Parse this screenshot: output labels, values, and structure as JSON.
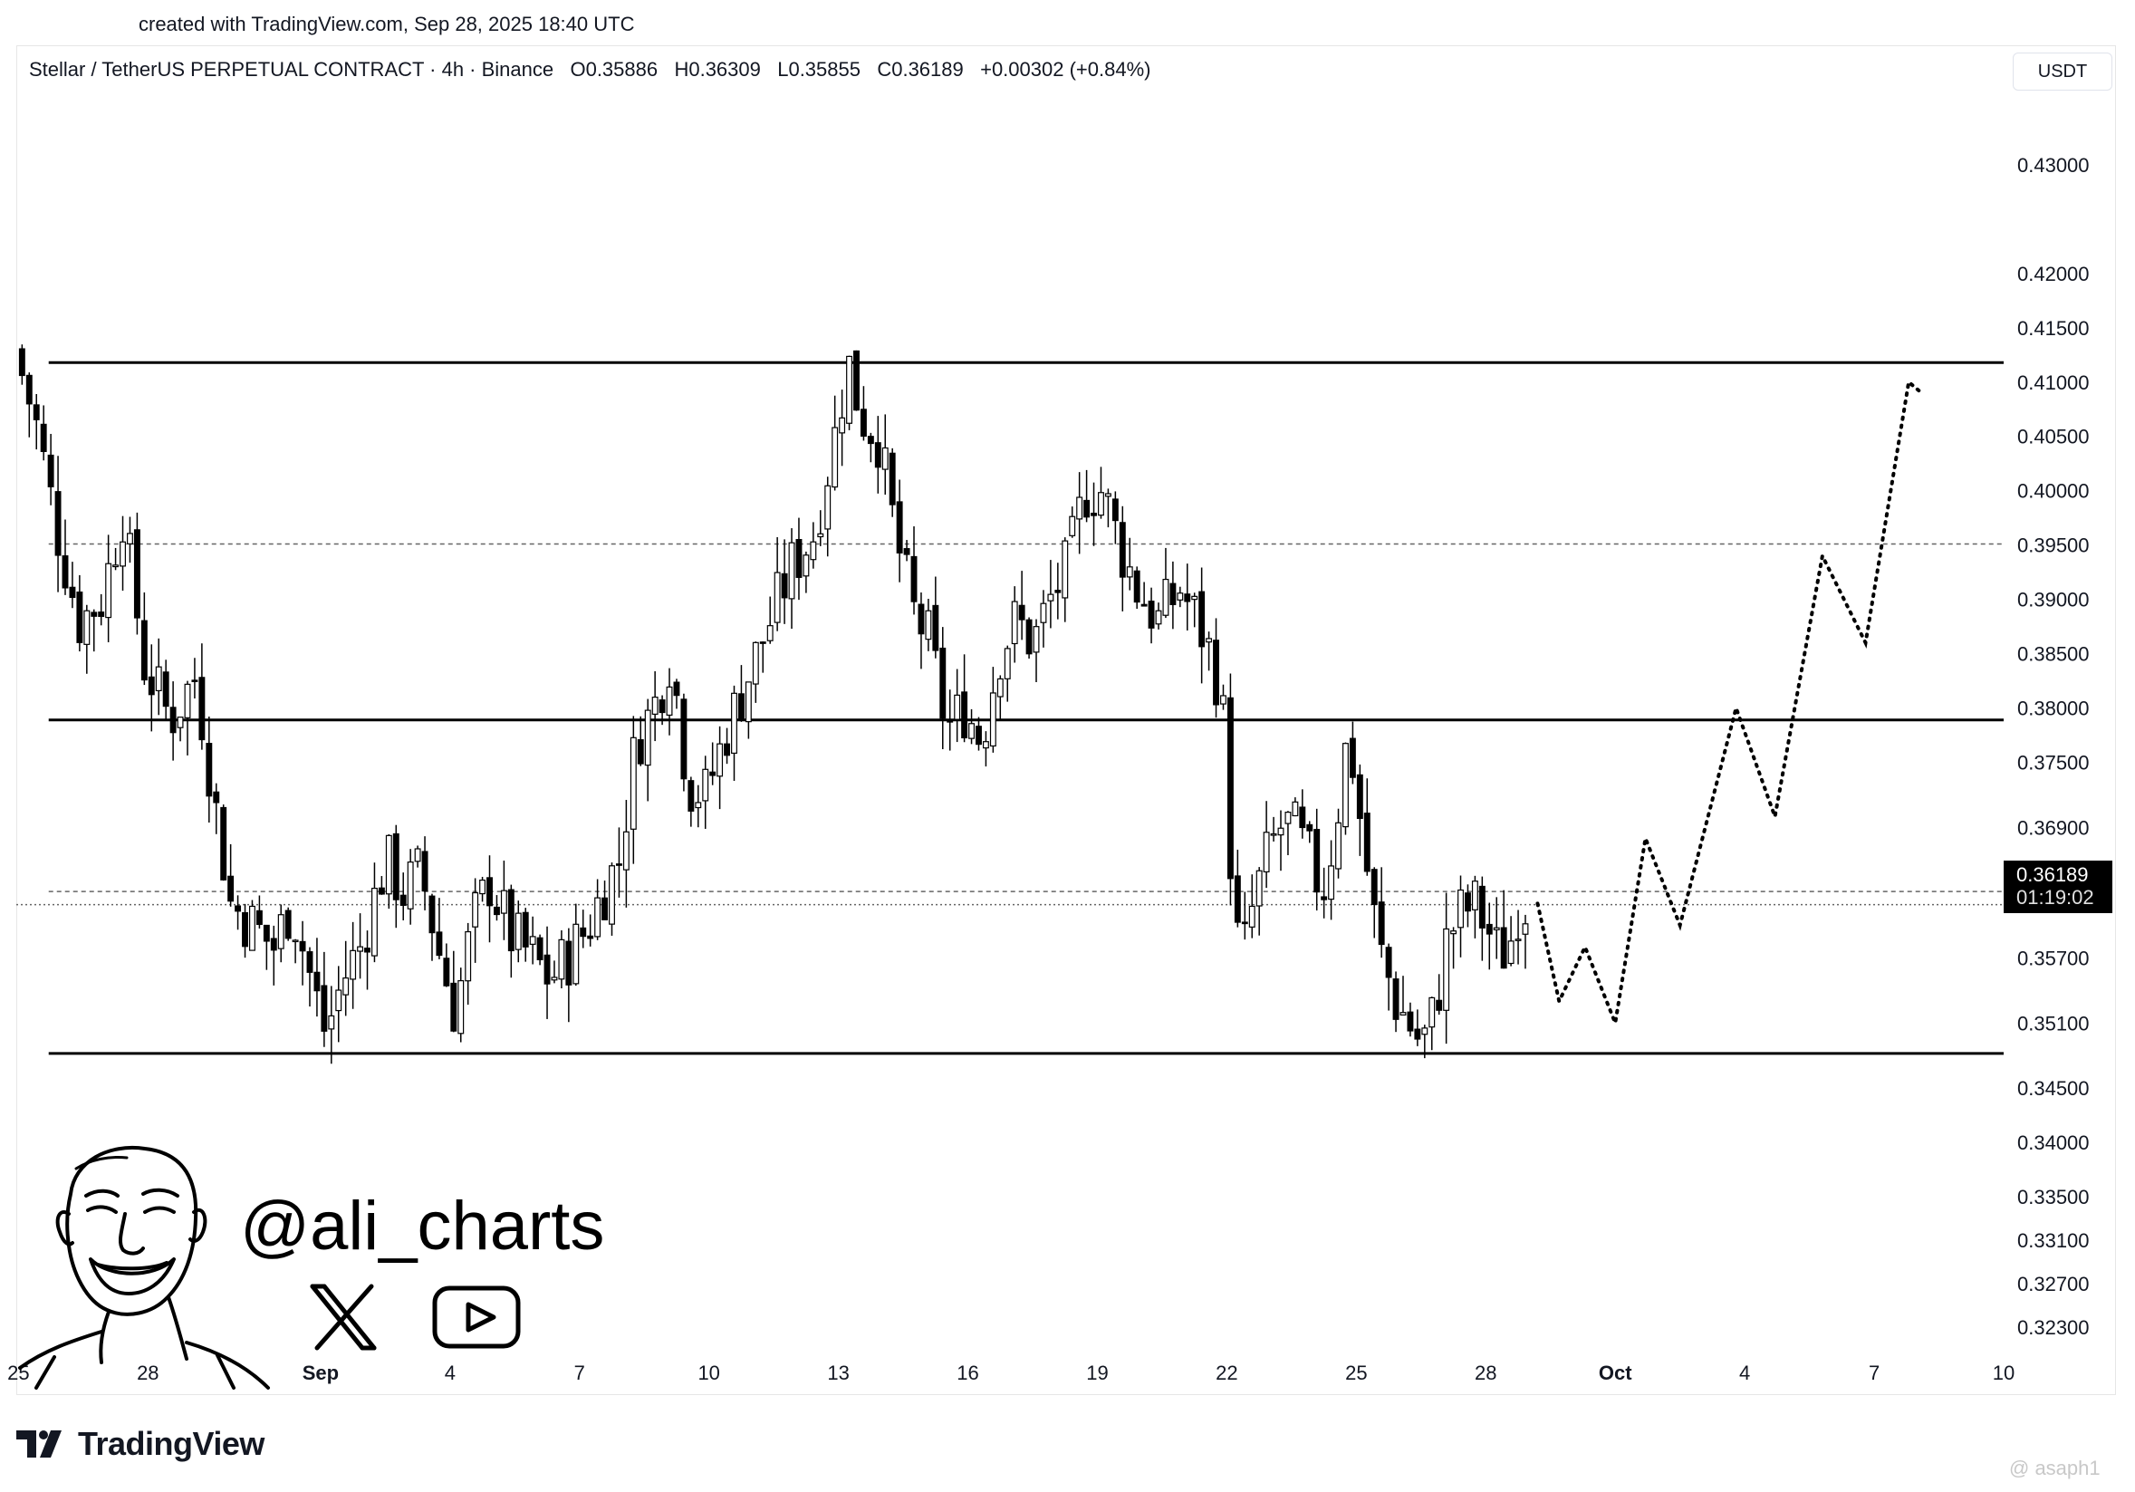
{
  "header": {
    "created": "created with TradingView.com, Sep 28, 2025 18:40 UTC"
  },
  "legend": {
    "symbol": "Stellar / TetherUS PERPETUAL CONTRACT · 4h · Binance",
    "open": "O0.35886",
    "high": "H0.36309",
    "low": "L0.35855",
    "close": "C0.36189",
    "change": "+0.00302 (+0.84%)"
  },
  "unit": "USDT",
  "price_label": {
    "price": "0.36189",
    "countdown": "01:19:02"
  },
  "branding": {
    "handle": "@ali_charts",
    "x_icon": "x-logo-icon",
    "youtube_icon": "youtube-icon",
    "footer": "TradingView",
    "watermark": "@ asaph1"
  },
  "colors": {
    "candle": "#000000",
    "background": "#ffffff",
    "grid_text": "#131722"
  },
  "chart_data": {
    "type": "candlestick",
    "title": "",
    "xlabel": "",
    "ylabel": "",
    "ylim": [
      0.318,
      0.436
    ],
    "y_ticks": [
      0.43,
      0.42,
      0.415,
      0.41,
      0.405,
      0.4,
      0.395,
      0.39,
      0.385,
      0.38,
      0.375,
      0.369,
      0.363,
      0.357,
      0.351,
      0.345,
      0.34,
      0.335,
      0.331,
      0.327,
      0.323
    ],
    "y_tick_labels": [
      "0.43000",
      "0.42000",
      "0.41500",
      "0.41000",
      "0.40500",
      "0.40000",
      "0.39500",
      "0.39000",
      "0.38500",
      "0.38000",
      "0.37500",
      "0.36900",
      "0.36300",
      "0.35700",
      "0.35100",
      "0.34500",
      "0.34000",
      "0.33500",
      "0.33100",
      "0.32700",
      "0.32300"
    ],
    "x_ticks": [
      {
        "label": "25",
        "day": 25
      },
      {
        "label": "28",
        "day": 28
      },
      {
        "label": "Sep",
        "day": 32,
        "bold": true
      },
      {
        "label": "4",
        "day": 35
      },
      {
        "label": "7",
        "day": 38
      },
      {
        "label": "10",
        "day": 41
      },
      {
        "label": "13",
        "day": 44
      },
      {
        "label": "16",
        "day": 47
      },
      {
        "label": "19",
        "day": 50
      },
      {
        "label": "22",
        "day": 53
      },
      {
        "label": "25",
        "day": 56
      },
      {
        "label": "28",
        "day": 59
      },
      {
        "label": "Oct",
        "day": 62,
        "bold": true
      },
      {
        "label": "4",
        "day": 65
      },
      {
        "label": "7",
        "day": 68
      },
      {
        "label": "10",
        "day": 71
      }
    ],
    "x_range_days": [
      24.95,
      71.0
    ],
    "candle_interval_days": 0.16667,
    "start_day": 25.0,
    "path_points": [
      [
        25.0,
        0.413
      ],
      [
        25.5,
        0.406
      ],
      [
        26.0,
        0.396
      ],
      [
        26.5,
        0.388
      ],
      [
        27.0,
        0.39
      ],
      [
        27.5,
        0.398
      ],
      [
        28.0,
        0.384
      ],
      [
        28.6,
        0.379
      ],
      [
        29.2,
        0.383
      ],
      [
        29.6,
        0.372
      ],
      [
        30.0,
        0.362
      ],
      [
        30.5,
        0.36
      ],
      [
        31.0,
        0.358
      ],
      [
        31.4,
        0.362
      ],
      [
        31.8,
        0.356
      ],
      [
        32.2,
        0.35
      ],
      [
        32.6,
        0.355
      ],
      [
        33.0,
        0.358
      ],
      [
        33.6,
        0.366
      ],
      [
        34.0,
        0.363
      ],
      [
        34.4,
        0.365
      ],
      [
        34.8,
        0.358
      ],
      [
        35.2,
        0.352
      ],
      [
        35.6,
        0.36
      ],
      [
        36.0,
        0.364
      ],
      [
        36.5,
        0.359
      ],
      [
        37.0,
        0.357
      ],
      [
        37.4,
        0.355
      ],
      [
        37.8,
        0.357
      ],
      [
        38.3,
        0.36
      ],
      [
        38.6,
        0.363
      ],
      [
        39.0,
        0.366
      ],
      [
        39.4,
        0.377
      ],
      [
        39.8,
        0.38
      ],
      [
        40.2,
        0.385
      ],
      [
        40.6,
        0.373
      ],
      [
        41.0,
        0.372
      ],
      [
        41.5,
        0.378
      ],
      [
        42.0,
        0.383
      ],
      [
        42.5,
        0.388
      ],
      [
        43.0,
        0.393
      ],
      [
        43.5,
        0.396
      ],
      [
        44.0,
        0.405
      ],
      [
        44.3,
        0.412
      ],
      [
        44.6,
        0.407
      ],
      [
        45.0,
        0.405
      ],
      [
        45.4,
        0.396
      ],
      [
        45.8,
        0.389
      ],
      [
        46.2,
        0.386
      ],
      [
        46.6,
        0.378
      ],
      [
        47.0,
        0.38
      ],
      [
        47.4,
        0.377
      ],
      [
        47.8,
        0.385
      ],
      [
        48.2,
        0.388
      ],
      [
        48.6,
        0.386
      ],
      [
        49.0,
        0.39
      ],
      [
        49.4,
        0.393
      ],
      [
        49.8,
        0.4
      ],
      [
        50.2,
        0.4
      ],
      [
        50.6,
        0.395
      ],
      [
        51.0,
        0.391
      ],
      [
        51.5,
        0.388
      ],
      [
        52.0,
        0.391
      ],
      [
        52.4,
        0.388
      ],
      [
        52.8,
        0.384
      ],
      [
        53.0,
        0.379
      ],
      [
        53.2,
        0.364
      ],
      [
        53.4,
        0.356
      ],
      [
        53.7,
        0.362
      ],
      [
        54.0,
        0.366
      ],
      [
        54.3,
        0.369
      ],
      [
        54.6,
        0.369
      ],
      [
        55.0,
        0.366
      ],
      [
        55.3,
        0.363
      ],
      [
        55.6,
        0.369
      ],
      [
        55.9,
        0.378
      ],
      [
        56.1,
        0.372
      ],
      [
        56.3,
        0.366
      ],
      [
        56.6,
        0.358
      ],
      [
        57.0,
        0.353
      ],
      [
        57.3,
        0.351
      ],
      [
        57.6,
        0.349
      ],
      [
        57.9,
        0.352
      ],
      [
        58.2,
        0.359
      ],
      [
        58.5,
        0.361
      ],
      [
        58.8,
        0.362
      ],
      [
        59.1,
        0.36
      ],
      [
        59.4,
        0.357
      ],
      [
        59.7,
        0.359
      ],
      [
        59.85,
        0.362
      ]
    ],
    "horizontal_lines": [
      {
        "price": 0.4118,
        "style": "solid",
        "from_day": 25.7
      },
      {
        "price": 0.3789,
        "style": "solid",
        "from_day": 25.7
      },
      {
        "price": 0.3482,
        "style": "solid",
        "from_day": 25.7
      },
      {
        "price": 0.3951,
        "style": "dashed",
        "from_day": 25.7
      },
      {
        "price": 0.3631,
        "style": "dashed",
        "from_day": 25.7
      },
      {
        "price": 0.3619,
        "style": "dotted",
        "from_day": 24.95
      }
    ],
    "projection": [
      [
        60.2,
        0.362
      ],
      [
        60.7,
        0.353
      ],
      [
        61.3,
        0.358
      ],
      [
        62.0,
        0.351
      ],
      [
        62.7,
        0.368
      ],
      [
        63.5,
        0.36
      ],
      [
        64.8,
        0.38
      ],
      [
        65.7,
        0.37
      ],
      [
        66.8,
        0.394
      ],
      [
        67.8,
        0.386
      ],
      [
        68.8,
        0.41
      ],
      [
        69.1,
        0.409
      ]
    ]
  }
}
